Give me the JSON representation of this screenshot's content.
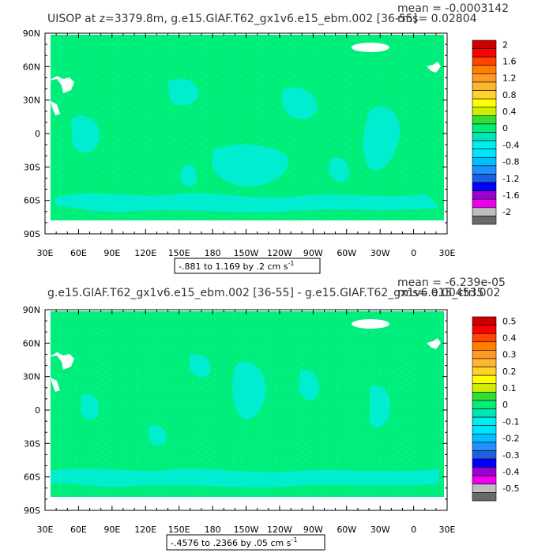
{
  "panels": [
    {
      "title": "UISOP at z=3379.8m, g.e15.GIAF.T62_gx1v6.e15_ebm.002 [36-55]",
      "mean_text": "mean = -0.0003142",
      "rms_text": "rms= 0.02804",
      "range_text": "-.881 to 1.169 by .2 cm s",
      "range_sup": "-1",
      "colorbar_labels": [
        "2",
        "1.6",
        "1.2",
        "0.8",
        "0.4",
        "0",
        "-0.4",
        "-0.8",
        "-1.2",
        "-1.6",
        "-2"
      ]
    },
    {
      "title": "g.e15.GIAF.T62_gx1v6.e15_ebm.002 [36-55] - g.e15.GIAF.T62_gx1v6.e15_ctrl.002",
      "mean_text": "mean = -6.239e-05",
      "rms_text": "rms= 0.004535",
      "range_text": "-.4576 to .2366 by .05 cm s",
      "range_sup": "-1",
      "colorbar_labels": [
        "0.5",
        "0.4",
        "0.3",
        "0.2",
        "0.1",
        "0",
        "-0.1",
        "-0.2",
        "-0.3",
        "-0.4",
        "-0.5"
      ]
    }
  ],
  "chart_data": [
    {
      "type": "heatmap",
      "title": "UISOP at z=3379.8m, g.e15.GIAF.T62_gx1v6.e15_ebm.002 [36-55]",
      "x_ticks": [
        "30E",
        "60E",
        "90E",
        "120E",
        "150E",
        "180",
        "150W",
        "120W",
        "90W",
        "60W",
        "30W",
        "0",
        "30E"
      ],
      "y_ticks": [
        "90N",
        "60N",
        "30N",
        "0",
        "30S",
        "60S",
        "90S"
      ],
      "xlim": [
        30,
        390
      ],
      "ylim": [
        -90,
        90
      ],
      "mean": -0.0003142,
      "rms": 0.02804,
      "min": -0.881,
      "max": 1.169,
      "contour_interval": 0.2,
      "units": "cm s-1",
      "colorbar_range": [
        -2,
        2
      ],
      "colors": [
        "#696969",
        "#bebebe",
        "#ee00ee",
        "#9a00d0",
        "#0000ff",
        "#1c60e0",
        "#1e90ff",
        "#00bfff",
        "#00e5ff",
        "#00eeee",
        "#00e5b4",
        "#00ee76",
        "#33dd33",
        "#ccee00",
        "#ffff00",
        "#ffd22b",
        "#ffb432",
        "#ff9a26",
        "#ff7f00",
        "#ff4500",
        "#ff0000",
        "#cd0000"
      ]
    },
    {
      "type": "heatmap",
      "title": "g.e15.GIAF.T62_gx1v6.e15_ebm.002 [36-55] - g.e15.GIAF.T62_gx1v6.e15_ctrl.002",
      "x_ticks": [
        "30E",
        "60E",
        "90E",
        "120E",
        "150E",
        "180",
        "150W",
        "120W",
        "90W",
        "60W",
        "30W",
        "0",
        "30E"
      ],
      "y_ticks": [
        "90N",
        "60N",
        "30N",
        "0",
        "30S",
        "60S",
        "90S"
      ],
      "xlim": [
        30,
        390
      ],
      "ylim": [
        -90,
        90
      ],
      "mean": -6.239e-05,
      "rms": 0.004535,
      "min": -0.4576,
      "max": 0.2366,
      "contour_interval": 0.05,
      "units": "cm s-1",
      "colorbar_range": [
        -0.5,
        0.5
      ],
      "colors": [
        "#696969",
        "#bebebe",
        "#ee00ee",
        "#9a00d0",
        "#0000ff",
        "#1c60e0",
        "#1e90ff",
        "#00bfff",
        "#00e5ff",
        "#00eeee",
        "#00e5b4",
        "#00ee76",
        "#33dd33",
        "#ccee00",
        "#ffff00",
        "#ffd22b",
        "#ffb432",
        "#ff9a26",
        "#ff7f00",
        "#ff4500",
        "#ff0000",
        "#cd0000"
      ]
    }
  ]
}
